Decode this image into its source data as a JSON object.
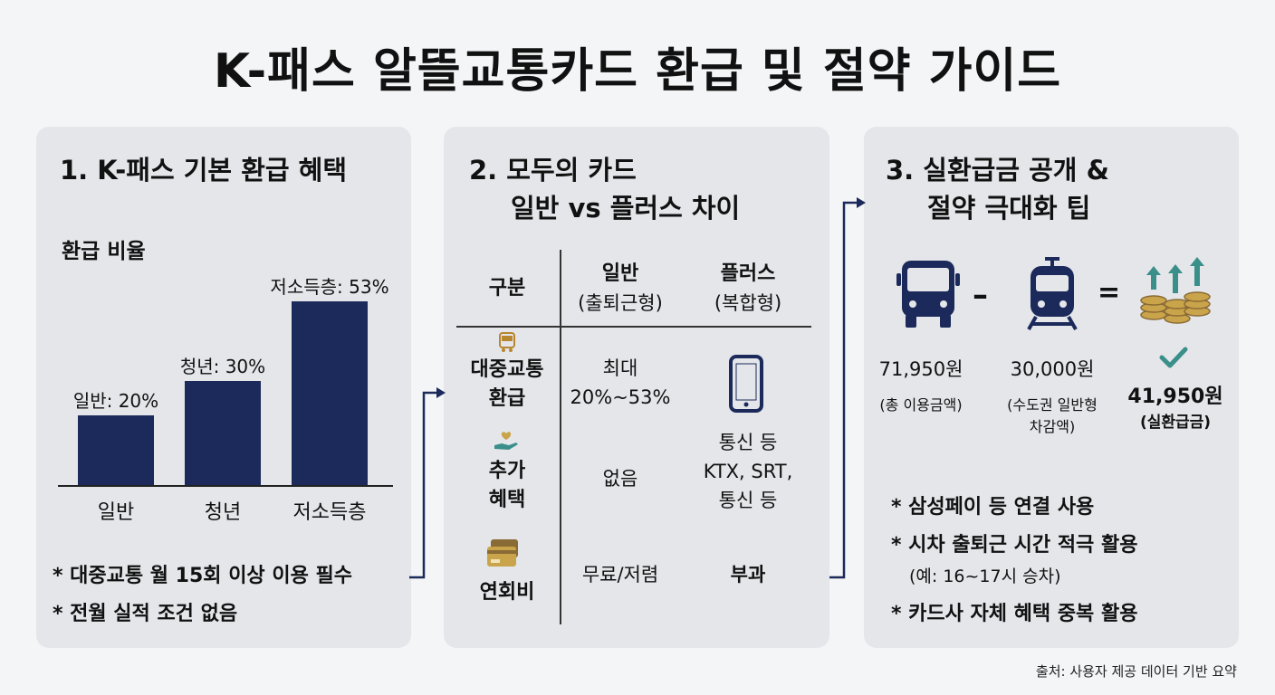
{
  "title": "K-패스 알뜰교통카드 환급 및 절약 가이드",
  "panel1": {
    "title": "1. K-패스 기본 환급 혜택",
    "subtitle": "환급 비율",
    "notes": [
      "* 대중교통 월 15회 이상 이용 필수",
      "* 전월 실적 조건 없음"
    ]
  },
  "chart_data": {
    "type": "bar",
    "categories": [
      "일반",
      "청년",
      "저소득층"
    ],
    "values": [
      20,
      30,
      53
    ],
    "data_labels": [
      "일반: 20%",
      "청년: 30%",
      "저소득층: 53%"
    ],
    "title": "환급 비율",
    "unit": "%",
    "ylim": [
      0,
      60
    ],
    "grid": false,
    "bar_color": "#1b2a5a"
  },
  "panel2": {
    "title_line1": "2. 모두의 카드",
    "title_line2": "일반 vs 플러스 차이",
    "header": {
      "col0": "구분",
      "col1_l1": "일반",
      "col1_l2": "(출퇴근형)",
      "col2_l1": "플러스",
      "col2_l2": "(복합형)"
    },
    "rows": [
      {
        "label_l1": "대중교통",
        "label_l2": "환급",
        "general_l1": "최대",
        "general_l2": "20%~53%",
        "icon": "phone-icon"
      },
      {
        "label_l1": "추가",
        "label_l2": "혜택",
        "general": "없음",
        "plus_l1": "통신 등",
        "plus_l2": "KTX, SRT,",
        "plus_l3": "통신 등"
      },
      {
        "label": "연회비",
        "general": "무료/저렴",
        "plus": "부과"
      }
    ]
  },
  "panel3": {
    "title_line1": "3. 실환급금 공개 &",
    "title_line2": "절약 극대화 팁",
    "minus": "–",
    "equals": "=",
    "total_amount": "71,950원",
    "total_label": "(총 이용금액)",
    "deduct_amount": "30,000원",
    "deduct_label_l1": "(수도권 일반형",
    "deduct_label_l2": "차감액)",
    "refund_amount": "41,950원",
    "refund_label": "(실환급금)",
    "tips": [
      "* 삼성페이 등 연결 사용",
      "* 시차 출퇴근 시간 적극 활용",
      "(예: 16~17시 승차)",
      "* 카드사 자체 혜택 중복 활용"
    ]
  },
  "source": "출처: 사용자 제공 데이터 기반 요약",
  "colors": {
    "navy": "#1b2a5a",
    "gold": "#c9a44a",
    "teal": "#3a8f8a",
    "panel": "#e4e6ea"
  }
}
